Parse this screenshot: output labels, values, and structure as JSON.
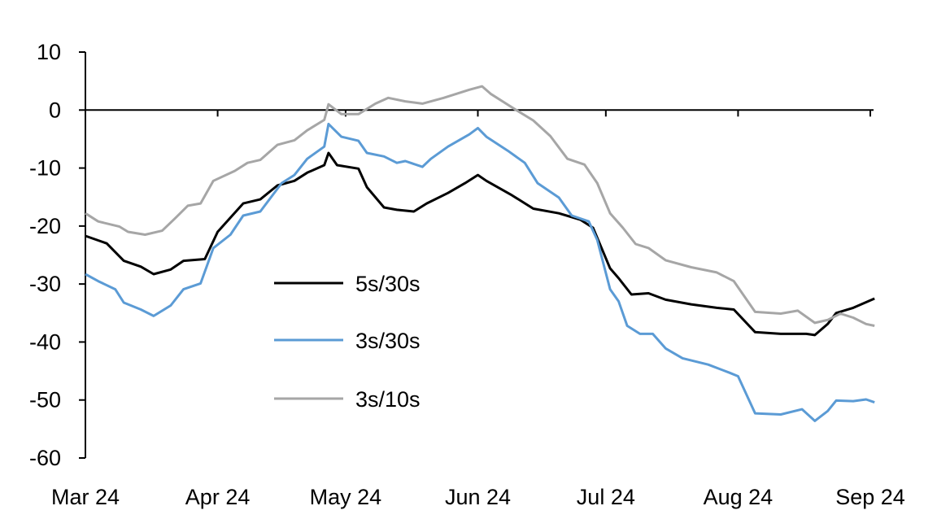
{
  "chart_data": {
    "type": "line",
    "title": "",
    "xlabel": "",
    "ylabel": "",
    "ylim": [
      -60,
      10
    ],
    "yticks": [
      10,
      0,
      -10,
      -20,
      -30,
      -40,
      -50,
      -60
    ],
    "xlim": [
      "2024-03-01",
      "2024-09-01"
    ],
    "xticks": [
      {
        "date": "2024-03-01",
        "label": "Mar 24"
      },
      {
        "date": "2024-04-01",
        "label": "Apr 24"
      },
      {
        "date": "2024-05-01",
        "label": "May 24"
      },
      {
        "date": "2024-06-01",
        "label": "Jun 24"
      },
      {
        "date": "2024-07-01",
        "label": "Jul 24"
      },
      {
        "date": "2024-08-01",
        "label": "Aug 24"
      },
      {
        "date": "2024-09-01",
        "label": "Sep 24"
      }
    ],
    "grid": false,
    "legend_placement": "center-left",
    "series": [
      {
        "name": "5s/30s",
        "color": "#000000",
        "points": [
          [
            "2024-03-01",
            -21.7
          ],
          [
            "2024-03-06",
            -23
          ],
          [
            "2024-03-10",
            -26
          ],
          [
            "2024-03-14",
            -27
          ],
          [
            "2024-03-17",
            -28.3
          ],
          [
            "2024-03-21",
            -27.5
          ],
          [
            "2024-03-24",
            -26
          ],
          [
            "2024-03-29",
            -25.7
          ],
          [
            "2024-04-01",
            -21
          ],
          [
            "2024-04-07",
            -16.1
          ],
          [
            "2024-04-11",
            -15.4
          ],
          [
            "2024-04-15",
            -13
          ],
          [
            "2024-04-19",
            -12.2
          ],
          [
            "2024-04-22",
            -10.8
          ],
          [
            "2024-04-26",
            -9.5
          ],
          [
            "2024-04-27",
            -7.4
          ],
          [
            "2024-04-29",
            -9.5
          ],
          [
            "2024-05-04",
            -10.1
          ],
          [
            "2024-05-06",
            -13.3
          ],
          [
            "2024-05-10",
            -16.8
          ],
          [
            "2024-05-13",
            -17.2
          ],
          [
            "2024-05-17",
            -17.5
          ],
          [
            "2024-05-20",
            -16.1
          ],
          [
            "2024-05-25",
            -14.3
          ],
          [
            "2024-05-29",
            -12.6
          ],
          [
            "2024-06-01",
            -11.2
          ],
          [
            "2024-06-03",
            -12.2
          ],
          [
            "2024-06-09",
            -14.7
          ],
          [
            "2024-06-14",
            -17
          ],
          [
            "2024-06-20",
            -17.8
          ],
          [
            "2024-06-25",
            -18.9
          ],
          [
            "2024-06-28",
            -20.3
          ],
          [
            "2024-07-02",
            -27.3
          ],
          [
            "2024-07-04",
            -29
          ],
          [
            "2024-07-07",
            -31.8
          ],
          [
            "2024-07-11",
            -31.6
          ],
          [
            "2024-07-15",
            -32.7
          ],
          [
            "2024-07-21",
            -33.5
          ],
          [
            "2024-07-27",
            -34.1
          ],
          [
            "2024-07-31",
            -34.4
          ],
          [
            "2024-08-05",
            -38.3
          ],
          [
            "2024-08-11",
            -38.6
          ],
          [
            "2024-08-17",
            -38.6
          ],
          [
            "2024-08-19",
            -38.8
          ],
          [
            "2024-08-22",
            -36.9
          ],
          [
            "2024-08-24",
            -35
          ],
          [
            "2024-08-28",
            -34.1
          ],
          [
            "2024-09-02",
            -32.5
          ]
        ]
      },
      {
        "name": "3s/30s",
        "color": "#5b9bd5",
        "points": [
          [
            "2024-03-01",
            -28.3
          ],
          [
            "2024-03-04",
            -29.5
          ],
          [
            "2024-03-08",
            -30.9
          ],
          [
            "2024-03-10",
            -33.2
          ],
          [
            "2024-03-14",
            -34.4
          ],
          [
            "2024-03-17",
            -35.5
          ],
          [
            "2024-03-21",
            -33.7
          ],
          [
            "2024-03-24",
            -30.9
          ],
          [
            "2024-03-28",
            -29.9
          ],
          [
            "2024-03-31",
            -23.8
          ],
          [
            "2024-04-04",
            -21.5
          ],
          [
            "2024-04-07",
            -18.2
          ],
          [
            "2024-04-11",
            -17.5
          ],
          [
            "2024-04-16",
            -12.6
          ],
          [
            "2024-04-19",
            -11.2
          ],
          [
            "2024-04-22",
            -8.4
          ],
          [
            "2024-04-26",
            -6.3
          ],
          [
            "2024-04-27",
            -2.4
          ],
          [
            "2024-04-30",
            -4.6
          ],
          [
            "2024-05-04",
            -5.3
          ],
          [
            "2024-05-06",
            -7.4
          ],
          [
            "2024-05-10",
            -8
          ],
          [
            "2024-05-13",
            -9.1
          ],
          [
            "2024-05-15",
            -8.8
          ],
          [
            "2024-05-19",
            -9.8
          ],
          [
            "2024-05-21",
            -8.4
          ],
          [
            "2024-05-25",
            -6.3
          ],
          [
            "2024-05-30",
            -4.2
          ],
          [
            "2024-06-01",
            -3.1
          ],
          [
            "2024-06-03",
            -4.6
          ],
          [
            "2024-06-08",
            -7
          ],
          [
            "2024-06-12",
            -9.1
          ],
          [
            "2024-06-15",
            -12.6
          ],
          [
            "2024-06-20",
            -15.1
          ],
          [
            "2024-06-23",
            -18.2
          ],
          [
            "2024-06-27",
            -19.2
          ],
          [
            "2024-06-29",
            -22.4
          ],
          [
            "2024-07-02",
            -30.9
          ],
          [
            "2024-07-04",
            -33
          ],
          [
            "2024-07-06",
            -37.2
          ],
          [
            "2024-07-09",
            -38.6
          ],
          [
            "2024-07-12",
            -38.6
          ],
          [
            "2024-07-15",
            -41.1
          ],
          [
            "2024-07-19",
            -42.8
          ],
          [
            "2024-07-25",
            -43.9
          ],
          [
            "2024-07-30",
            -45.3
          ],
          [
            "2024-08-01",
            -45.9
          ],
          [
            "2024-08-05",
            -52.3
          ],
          [
            "2024-08-11",
            -52.5
          ],
          [
            "2024-08-16",
            -51.6
          ],
          [
            "2024-08-19",
            -53.6
          ],
          [
            "2024-08-22",
            -51.9
          ],
          [
            "2024-08-24",
            -50.1
          ],
          [
            "2024-08-28",
            -50.2
          ],
          [
            "2024-08-31",
            -49.9
          ],
          [
            "2024-09-02",
            -50.4
          ]
        ]
      },
      {
        "name": "3s/10s",
        "color": "#a6a6a6",
        "points": [
          [
            "2024-03-01",
            -17.8
          ],
          [
            "2024-03-04",
            -19.2
          ],
          [
            "2024-03-09",
            -20.1
          ],
          [
            "2024-03-11",
            -21
          ],
          [
            "2024-03-15",
            -21.5
          ],
          [
            "2024-03-19",
            -20.8
          ],
          [
            "2024-03-22",
            -18.7
          ],
          [
            "2024-03-25",
            -16.5
          ],
          [
            "2024-03-28",
            -16.1
          ],
          [
            "2024-03-31",
            -12.2
          ],
          [
            "2024-04-05",
            -10.5
          ],
          [
            "2024-04-08",
            -9.1
          ],
          [
            "2024-04-11",
            -8.6
          ],
          [
            "2024-04-15",
            -6
          ],
          [
            "2024-04-19",
            -5.2
          ],
          [
            "2024-04-22",
            -3.5
          ],
          [
            "2024-04-26",
            -1.7
          ],
          [
            "2024-04-27",
            1
          ],
          [
            "2024-04-30",
            -0.7
          ],
          [
            "2024-05-04",
            -0.7
          ],
          [
            "2024-05-08",
            1.1
          ],
          [
            "2024-05-11",
            2.1
          ],
          [
            "2024-05-15",
            1.5
          ],
          [
            "2024-05-19",
            1.1
          ],
          [
            "2024-05-24",
            2.1
          ],
          [
            "2024-05-30",
            3.5
          ],
          [
            "2024-06-02",
            4.1
          ],
          [
            "2024-06-04",
            2.8
          ],
          [
            "2024-06-10",
            0
          ],
          [
            "2024-06-14",
            -1.8
          ],
          [
            "2024-06-18",
            -4.5
          ],
          [
            "2024-06-22",
            -8.4
          ],
          [
            "2024-06-26",
            -9.4
          ],
          [
            "2024-06-29",
            -12.6
          ],
          [
            "2024-07-02",
            -17.8
          ],
          [
            "2024-07-05",
            -20.3
          ],
          [
            "2024-07-08",
            -23.1
          ],
          [
            "2024-07-11",
            -23.8
          ],
          [
            "2024-07-15",
            -25.9
          ],
          [
            "2024-07-21",
            -27.1
          ],
          [
            "2024-07-27",
            -28
          ],
          [
            "2024-07-31",
            -29.5
          ],
          [
            "2024-08-05",
            -34.8
          ],
          [
            "2024-08-11",
            -35.1
          ],
          [
            "2024-08-15",
            -34.6
          ],
          [
            "2024-08-19",
            -36.7
          ],
          [
            "2024-08-22",
            -36.2
          ],
          [
            "2024-08-25",
            -35.1
          ],
          [
            "2024-08-28",
            -35.8
          ],
          [
            "2024-08-31",
            -36.9
          ],
          [
            "2024-09-02",
            -37.2
          ]
        ]
      }
    ]
  }
}
